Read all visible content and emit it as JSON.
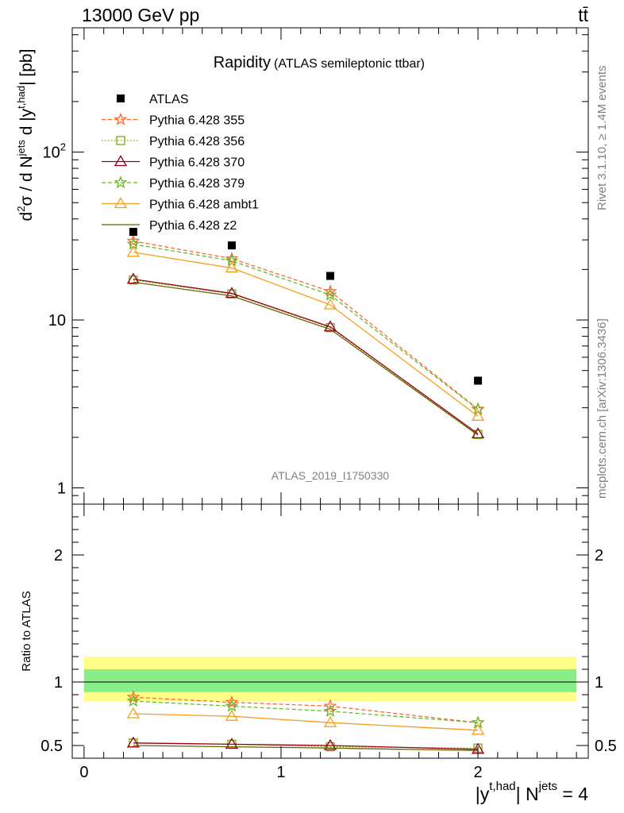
{
  "header": {
    "left": "13000 GeV pp",
    "right": "tt̄"
  },
  "side_labels": {
    "rivet": "Rivet 3.1.10, ≥ 1.4M events",
    "mcplots": "mcplots.cern.ch [arXiv:1306.3436]"
  },
  "chart_data": {
    "type": "line",
    "title": "Rapidity",
    "subtitle": "(ATLAS semileptonic ttbar)",
    "analysis_id": "ATLAS_2019_I1750330",
    "xlabel": "|y^{t,had}| N^{jets} = 4",
    "ylabel": "d²σ / d N^{jets} d |y^{t,had}| [pb]",
    "ratio_ylabel": "Ratio to ATLAS",
    "xlim": [
      -0.06,
      2.56
    ],
    "ylim": [
      0.8,
      550
    ],
    "yscale": "log",
    "ratio_ylim": [
      0.4,
      2.4
    ],
    "xticks": [
      "0",
      "1",
      "2"
    ],
    "yticks": [
      "1",
      "10",
      "10²"
    ],
    "ratio_yticks": [
      "0.5",
      "1",
      "2"
    ],
    "legend_position": "top-left",
    "x": [
      0.25,
      0.75,
      1.25,
      2.0
    ],
    "bins": [
      [
        0,
        0.5
      ],
      [
        0.5,
        1.0
      ],
      [
        1.0,
        1.5
      ],
      [
        1.5,
        2.5
      ]
    ],
    "data": {
      "name": "ATLAS",
      "values": [
        33.5,
        27.8,
        18.3,
        4.35
      ],
      "ratio_band_inner": [
        [
          0.92,
          1.1
        ],
        [
          0.92,
          1.1
        ],
        [
          0.92,
          1.1
        ],
        [
          0.92,
          1.1
        ]
      ],
      "ratio_band_outer": [
        [
          0.85,
          1.2
        ],
        [
          0.85,
          1.2
        ],
        [
          0.85,
          1.2
        ],
        [
          0.85,
          1.2
        ]
      ]
    },
    "series": [
      {
        "name": "Pythia 6.428 355",
        "color": "#ff6633",
        "dash": "dashed",
        "marker": "star",
        "values": [
          29.5,
          23.2,
          14.8,
          2.95
        ],
        "ratio": [
          0.88,
          0.84,
          0.81,
          0.68
        ]
      },
      {
        "name": "Pythia 6.428 356",
        "color": "#77aa11",
        "dash": "dotted",
        "marker": "open-square",
        "values": [
          17.3,
          14.3,
          9.0,
          2.08
        ],
        "ratio": [
          0.52,
          0.51,
          0.49,
          0.48
        ]
      },
      {
        "name": "Pythia 6.428 370",
        "color": "#990011",
        "dash": "solid",
        "marker": "open-triangle",
        "values": [
          17.5,
          14.4,
          9.1,
          2.1
        ],
        "ratio": [
          0.52,
          0.51,
          0.5,
          0.47
        ]
      },
      {
        "name": "Pythia 6.428 379",
        "color": "#66bb22",
        "dash": "dashed",
        "marker": "star",
        "values": [
          28.3,
          22.5,
          14.1,
          2.93
        ],
        "ratio": [
          0.85,
          0.81,
          0.77,
          0.68
        ]
      },
      {
        "name": "Pythia 6.428 ambt1",
        "color": "#f2a01c",
        "dash": "solid",
        "marker": "open-triangle",
        "values": [
          25.3,
          20.4,
          12.3,
          2.67
        ],
        "ratio": [
          0.75,
          0.73,
          0.68,
          0.62
        ]
      },
      {
        "name": "Pythia 6.428 z2",
        "color": "#666600",
        "dash": "solid",
        "marker": "line",
        "values": [
          16.8,
          13.9,
          8.8,
          2.06
        ],
        "ratio": [
          0.5,
          0.49,
          0.48,
          0.46
        ]
      }
    ]
  }
}
